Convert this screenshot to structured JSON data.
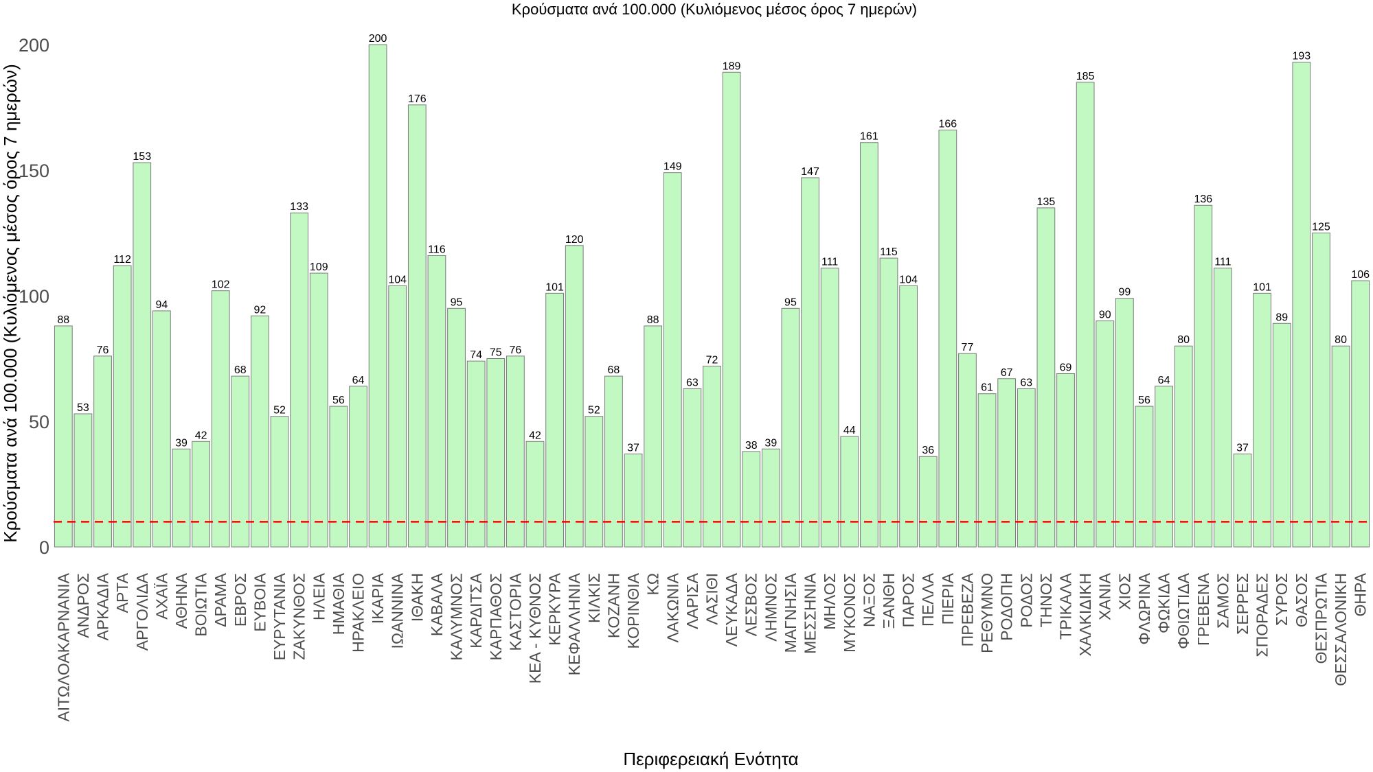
{
  "chart_data": {
    "type": "bar",
    "title": "Κρούσματα ανά 100.000 (Κυλιόμενος μέσος όρος 7 ημερών)",
    "xlabel": "Περιφερειακή Ενότητα",
    "ylabel": "Κρούσματα ανά 100.000 (Κυλιόμενος μέσος όρος 7 ημερών)",
    "ylim": [
      0,
      200
    ],
    "yticks": [
      0,
      50,
      100,
      150,
      200
    ],
    "grid": false,
    "bar_color": "#c2f9c3",
    "bar_border_color": "#7a7a7a",
    "reference_line": {
      "value": 10,
      "color": "#ff0000",
      "style": "dashed"
    },
    "categories": [
      "ΑΙΤΩΛΟΑΚΑΡΝΑΝΙΑ",
      "ΑΝΔΡΟΣ",
      "ΑΡΚΑΔΙΑ",
      "ΑΡΤΑ",
      "ΑΡΓΟΛΙΔΑ",
      "ΑΧΑΪΑ",
      "ΑΘΗΝΑ",
      "ΒΟΙΩΤΙΑ",
      "ΔΡΑΜΑ",
      "ΕΒΡΟΣ",
      "ΕΥΒΟΙΑ",
      "ΕΥΡΥΤΑΝΙΑ",
      "ΖΑΚΥΝΘΟΣ",
      "ΗΛΕΙΑ",
      "ΗΜΑΘΙΑ",
      "ΗΡΑΚΛΕΙΟ",
      "ΙΚΑΡΙΑ",
      "ΙΩΑΝΝΙΝΑ",
      "ΙΘΑΚΗ",
      "ΚΑΒΑΛΑ",
      "ΚΑΛΥΜΝΟΣ",
      "ΚΑΡΔΙΤΣΑ",
      "ΚΑΡΠΑΘΟΣ",
      "ΚΑΣΤΟΡΙΑ",
      "ΚΕΑ - ΚΥΘΝΟΣ",
      "ΚΕΡΚΥΡΑ",
      "ΚΕΦΑΛΛΗΝΙΑ",
      "ΚΙΛΚΙΣ",
      "ΚΟΖΑΝΗ",
      "ΚΟΡΙΝΘΙΑ",
      "ΚΩ",
      "ΛΑΚΩΝΙΑ",
      "ΛΑΡΙΣΑ",
      "ΛΑΣΙΘΙ",
      "ΛΕΥΚΑΔΑ",
      "ΛΕΣΒΟΣ",
      "ΛΗΜΝΟΣ",
      "ΜΑΓΝΗΣΙΑ",
      "ΜΕΣΣΗΝΙΑ",
      "ΜΗΛΟΣ",
      "ΜΥΚΟΝΟΣ",
      "ΝΑΞΟΣ",
      "ΞΑΝΘΗ",
      "ΠΑΡΟΣ",
      "ΠΕΛΛΑ",
      "ΠΙΕΡΙΑ",
      "ΠΡΕΒΕΖΑ",
      "ΡΕΘΥΜΝΟ",
      "ΡΟΔΟΠΗ",
      "ΡΟΔΟΣ",
      "ΤΗΝΟΣ",
      "ΤΡΙΚΑΛΑ",
      "ΧΑΛΚΙΔΙΚΗ",
      "ΧΑΝΙΑ",
      "ΧΙΟΣ",
      "ΦΛΩΡΙΝΑ",
      "ΦΩΚΙΔΑ",
      "ΦΘΙΩΤΙΔΑ",
      "ΓΡΕΒΕΝΑ",
      "ΣΑΜΟΣ",
      "ΣΕΡΡΕΣ",
      "ΣΠΟΡΑΔΕΣ",
      "ΣΥΡΟΣ",
      "ΘΑΣΟΣ",
      "ΘΕΣΠΡΩΤΙΑ",
      "ΘΕΣΣΑΛΟΝΙΚΗ",
      "ΘΗΡΑ"
    ],
    "values": [
      88,
      53,
      76,
      112,
      153,
      94,
      39,
      42,
      102,
      68,
      92,
      52,
      133,
      109,
      56,
      64,
      200,
      104,
      176,
      116,
      95,
      74,
      75,
      76,
      42,
      101,
      120,
      52,
      68,
      37,
      88,
      149,
      63,
      72,
      189,
      38,
      39,
      95,
      147,
      111,
      44,
      161,
      115,
      104,
      36,
      166,
      77,
      61,
      67,
      63,
      135,
      69,
      185,
      90,
      99,
      56,
      64,
      80,
      136,
      111,
      37,
      101,
      89,
      193,
      125,
      80,
      106
    ]
  }
}
